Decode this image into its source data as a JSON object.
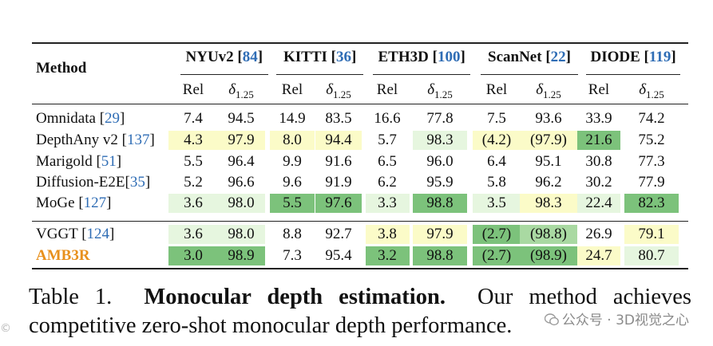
{
  "table": {
    "method_header": "Method",
    "datasets": [
      {
        "name": "NYUv2",
        "ref": "84"
      },
      {
        "name": "KITTI",
        "ref": "36"
      },
      {
        "name": "ETH3D",
        "ref": "100"
      },
      {
        "name": "ScanNet",
        "ref": "22"
      },
      {
        "name": "DIODE",
        "ref": "119"
      }
    ],
    "metric_rel": "Rel",
    "metric_delta": "δ",
    "metric_delta_sub": "1.25",
    "rows": [
      {
        "method": "Omnidata ",
        "ref": "29",
        "values": [
          "7.4",
          "94.5",
          "14.9",
          "83.5",
          "16.6",
          "77.8",
          "7.5",
          "93.6",
          "33.9",
          "74.2"
        ],
        "shade": [
          0,
          0,
          0,
          0,
          0,
          0,
          0,
          0,
          0,
          0
        ]
      },
      {
        "method": "DepthAny v2 ",
        "ref": "137",
        "values": [
          "4.3",
          "97.9",
          "8.0",
          "94.4",
          "5.7",
          "98.3",
          "(4.2)",
          "(97.9)",
          "21.6",
          "75.2"
        ],
        "shade": [
          1,
          1,
          1,
          1,
          0,
          2,
          1,
          1,
          4,
          0
        ]
      },
      {
        "method": "Marigold ",
        "ref": "51",
        "values": [
          "5.5",
          "96.4",
          "9.9",
          "91.6",
          "6.5",
          "96.0",
          "6.4",
          "95.1",
          "30.8",
          "77.3"
        ],
        "shade": [
          0,
          0,
          0,
          0,
          0,
          0,
          0,
          0,
          0,
          0
        ]
      },
      {
        "method": "Diffusion-E2E",
        "ref": "35",
        "values": [
          "5.2",
          "96.6",
          "9.6",
          "91.9",
          "6.2",
          "95.9",
          "5.8",
          "96.2",
          "30.2",
          "77.9"
        ],
        "shade": [
          0,
          0,
          0,
          0,
          0,
          0,
          0,
          0,
          0,
          0
        ]
      },
      {
        "method": "MoGe ",
        "ref": "127",
        "values": [
          "3.6",
          "98.0",
          "5.5",
          "97.6",
          "3.3",
          "98.8",
          "3.5",
          "98.3",
          "22.4",
          "82.3"
        ],
        "shade": [
          2,
          2,
          4,
          4,
          2,
          4,
          2,
          1,
          2,
          4
        ]
      },
      {
        "method": "VGGT ",
        "ref": "124",
        "values": [
          "3.6",
          "98.0",
          "8.8",
          "92.7",
          "3.8",
          "97.9",
          "(2.7)",
          "(98.8)",
          "26.9",
          "79.1"
        ],
        "shade": [
          2,
          2,
          0,
          0,
          1,
          1,
          4,
          3,
          0,
          1
        ]
      },
      {
        "method": "AMB3R",
        "ref": "",
        "values": [
          "3.0",
          "98.9",
          "7.3",
          "95.4",
          "3.2",
          "98.8",
          "(2.7)",
          "(98.9)",
          "24.7",
          "80.7"
        ],
        "shade": [
          4,
          4,
          0,
          0,
          4,
          4,
          4,
          4,
          1,
          2
        ],
        "highlight": true
      }
    ]
  },
  "caption": {
    "label": "Table 1.",
    "title": "Monocular depth estimation.",
    "text_line1": "Our method achieves",
    "text_line2": "competitive zero-shot monocular depth performance."
  },
  "watermark": {
    "main": "公众号 · 3D视觉之心",
    "corner": "©"
  },
  "colors": {
    "light_yellow": "#fbfbc8",
    "light_green": "#e6f6df",
    "mid_green": "#a9d9a2",
    "dark_green": "#7cc27b",
    "reference_blue": "#2f6db5",
    "highlight_orange": "#e8901c"
  }
}
